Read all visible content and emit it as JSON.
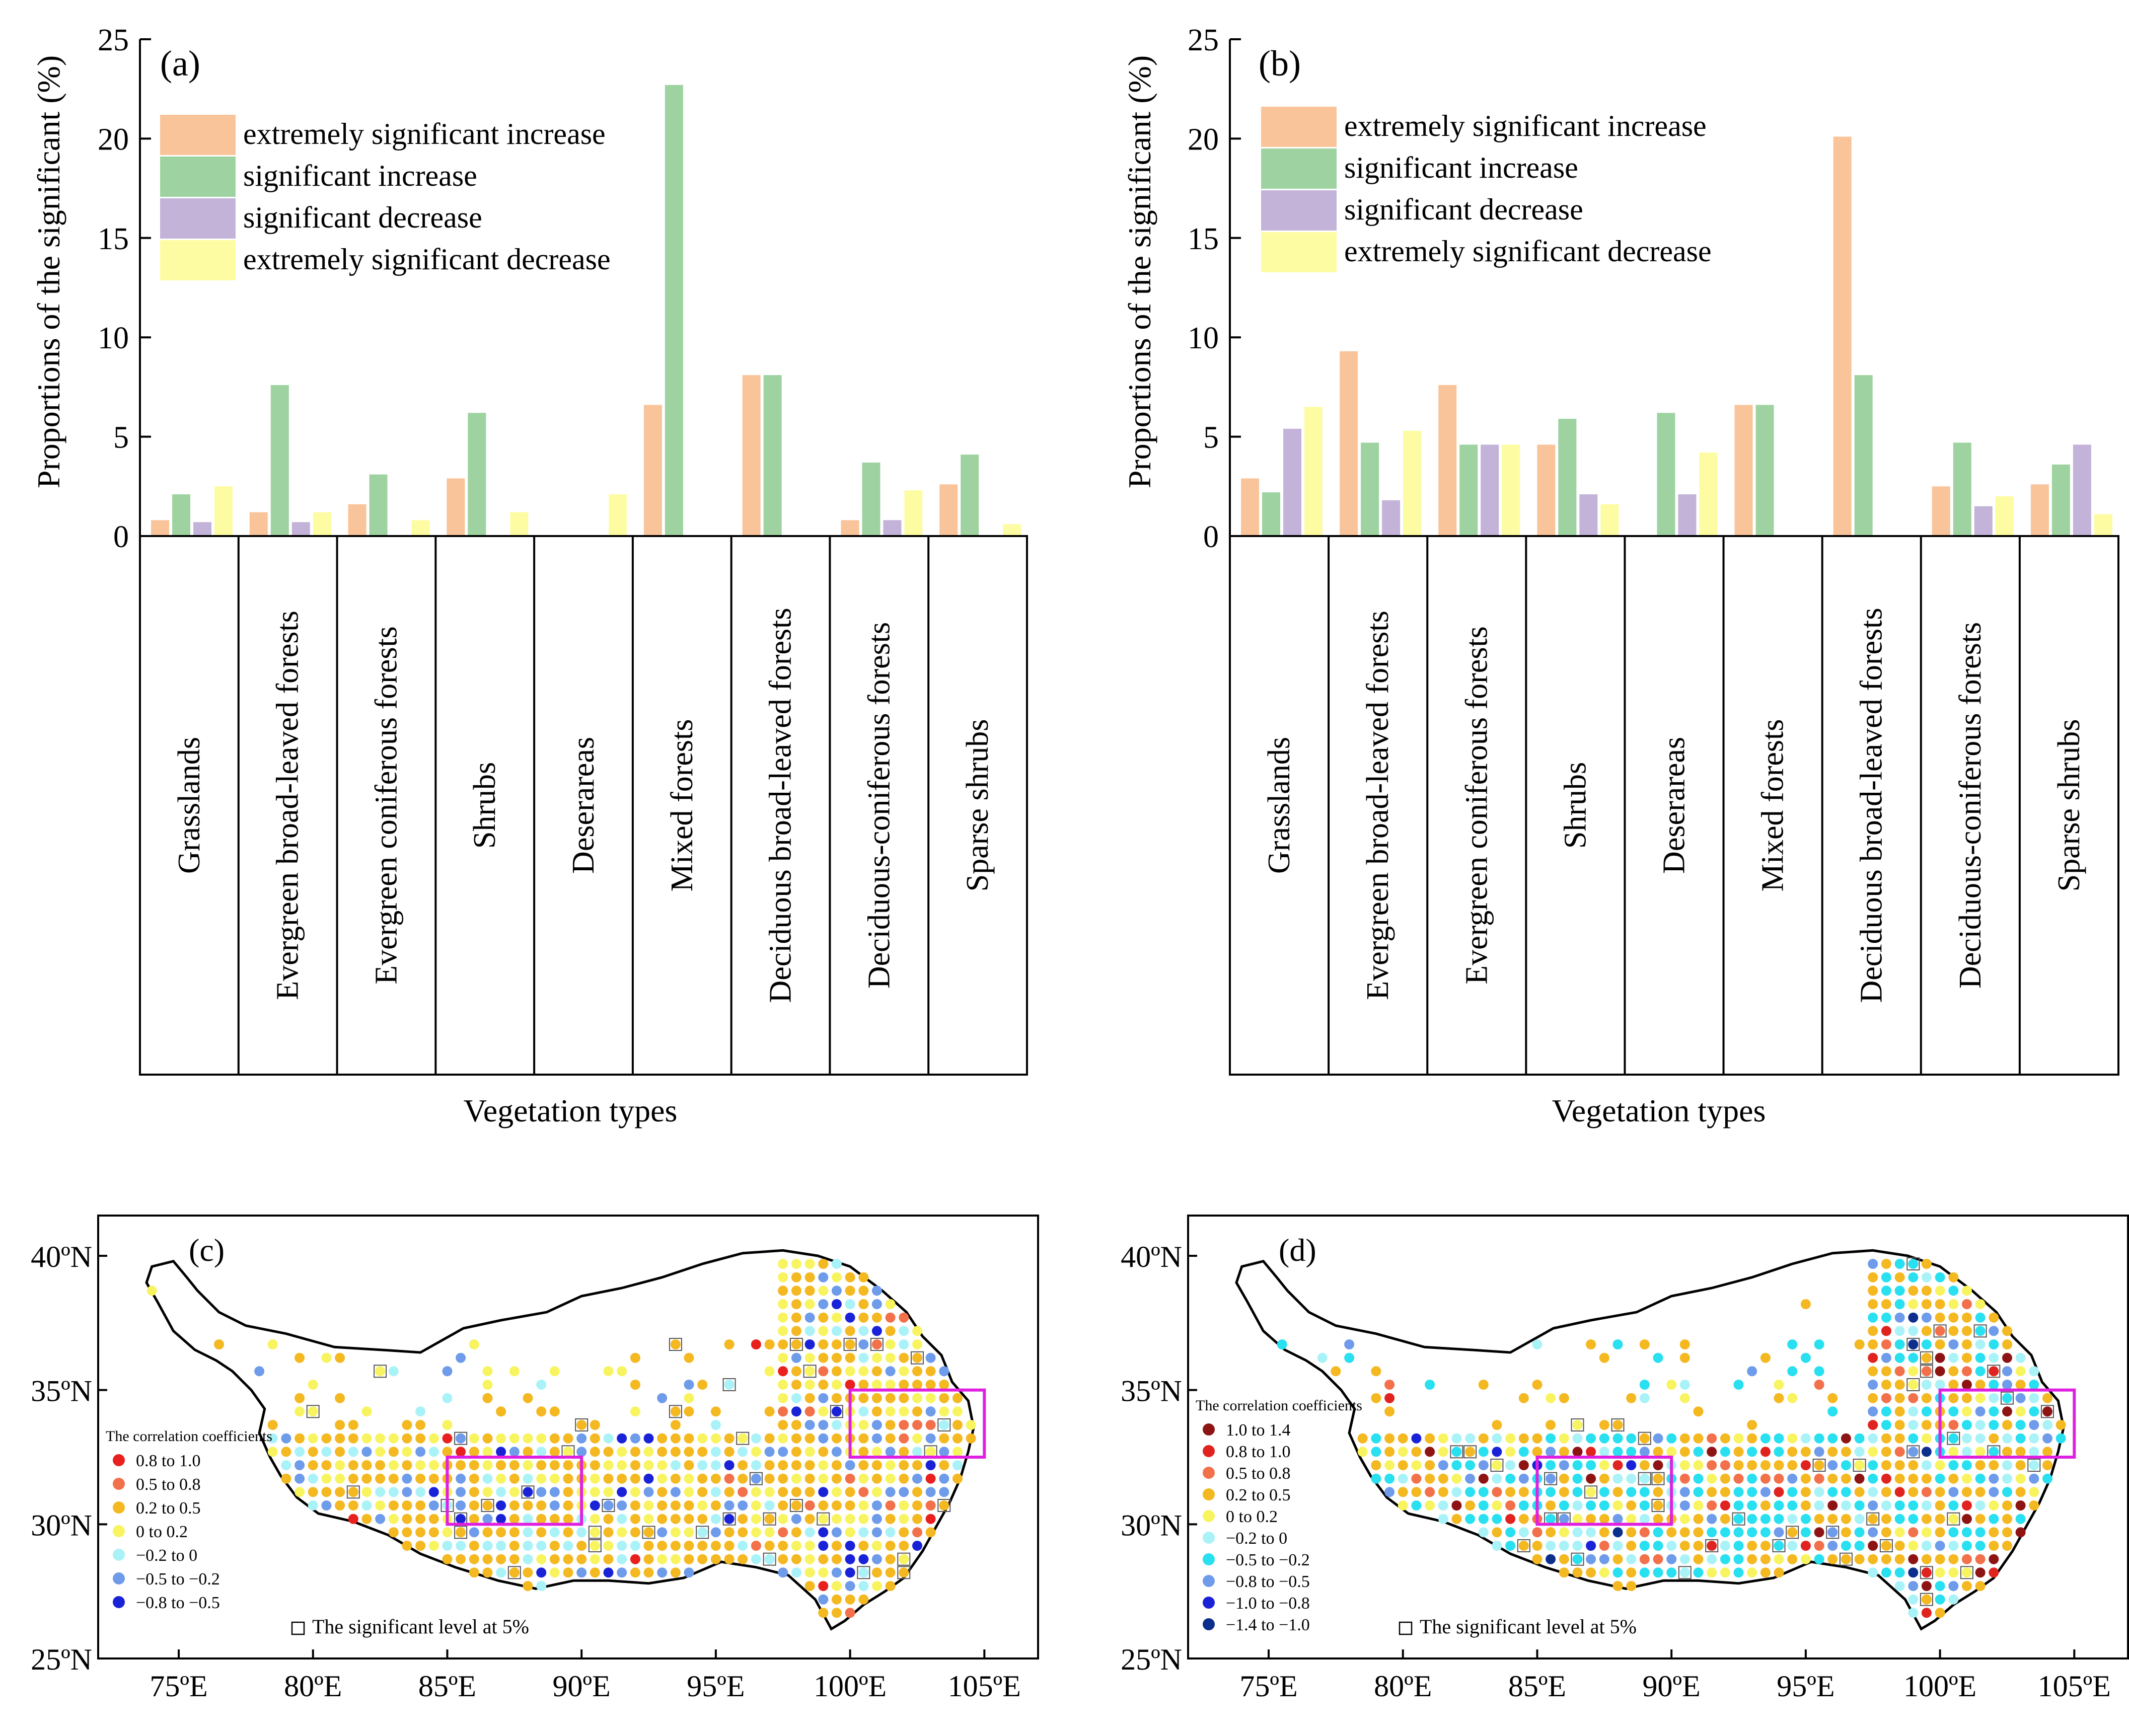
{
  "chart_data": [
    {
      "id": "a",
      "type": "bar",
      "panel_label": "(a)",
      "ylabel": "Proportions of the significant (%)",
      "xlabel": "Vegetation types",
      "ylim": [
        0,
        25
      ],
      "yticks": [
        "0",
        "5",
        "10",
        "15",
        "20",
        "25"
      ],
      "categories": [
        "Grasslands",
        "Evergreen broad-leaved forests",
        "Evergreen coniferous forests",
        "Shrubs",
        "Deserareas",
        "Mixed forests",
        "Deciduous broad-leaved forests",
        "Deciduous-coniferous forests",
        "Sparse shrubs"
      ],
      "legend_position": "top-left",
      "series": [
        {
          "name": "extremely significant increase",
          "color": "#F9C49A",
          "values": [
            0.8,
            1.2,
            1.6,
            2.9,
            0.0,
            6.6,
            8.1,
            0.8,
            2.6
          ]
        },
        {
          "name": "significant increase",
          "color": "#9ED3A1",
          "values": [
            2.1,
            7.6,
            3.1,
            6.2,
            0.0,
            22.7,
            8.1,
            3.7,
            4.1
          ]
        },
        {
          "name": "significant decrease",
          "color": "#C3B3D9",
          "values": [
            0.7,
            0.7,
            0.0,
            0.0,
            0.0,
            0.0,
            0.0,
            0.8,
            0.0
          ]
        },
        {
          "name": "extremely significant decrease",
          "color": "#FDFCA3",
          "values": [
            2.5,
            1.2,
            0.8,
            1.2,
            2.1,
            0.0,
            0.0,
            2.3,
            0.6
          ]
        }
      ]
    },
    {
      "id": "b",
      "type": "bar",
      "panel_label": "(b)",
      "ylabel": "Proportions of the significant (%)",
      "xlabel": "Vegetation types",
      "ylim": [
        0,
        25
      ],
      "yticks": [
        "0",
        "5",
        "10",
        "15",
        "20",
        "25"
      ],
      "categories": [
        "Grasslands",
        "Evergreen broad-leaved forests",
        "Evergreen coniferous forests",
        "Shrubs",
        "Deserareas",
        "Mixed forests",
        "Deciduous broad-leaved forests",
        "Deciduous-coniferous forests",
        "Sparse shrubs"
      ],
      "legend_position": "top-left",
      "series": [
        {
          "name": "extremely significant increase",
          "color": "#F9C49A",
          "values": [
            2.9,
            9.3,
            7.6,
            4.6,
            0.0,
            6.6,
            20.1,
            2.5,
            2.6
          ]
        },
        {
          "name": "significant increase",
          "color": "#9ED3A1",
          "values": [
            2.2,
            4.7,
            4.6,
            5.9,
            6.2,
            6.6,
            8.1,
            4.7,
            3.6
          ]
        },
        {
          "name": "significant decrease",
          "color": "#C3B3D9",
          "values": [
            5.4,
            1.8,
            4.6,
            2.1,
            2.1,
            0.0,
            0.0,
            1.5,
            4.6
          ]
        },
        {
          "name": "extremely significant decrease",
          "color": "#FDFCA3",
          "values": [
            6.5,
            5.3,
            4.6,
            1.6,
            4.2,
            0.0,
            0.0,
            2.0,
            1.1
          ]
        }
      ]
    },
    {
      "id": "c",
      "type": "map",
      "panel_label": "(c)",
      "lon_ticks": [
        "75ºE",
        "80ºE",
        "85ºE",
        "90ºE",
        "95ºE",
        "100ºE",
        "105ºE"
      ],
      "lat_ticks": [
        "25ºN",
        "30ºN",
        "35ºN",
        "40ºN"
      ],
      "lon_range": [
        72,
        107
      ],
      "lat_range": [
        25,
        41.5
      ],
      "legend_title": "The correlation coefficients",
      "legend_position": "bottom-left",
      "classes": [
        {
          "label": "0.8  to  1.0",
          "color": "#E8201E"
        },
        {
          "label": "0.5  to  0.8",
          "color": "#F2704A"
        },
        {
          "label": "0.2  to  0.5",
          "color": "#F4B820"
        },
        {
          "label": "0  to  0.2",
          "color": "#F8F460"
        },
        {
          "label": "−0.2  to  0",
          "color": "#A9F3F8"
        },
        {
          "label": "−0.5  to  −0.2",
          "color": "#6E9BEA"
        },
        {
          "label": "−0.8  to  −0.5",
          "color": "#1A22D8"
        }
      ],
      "significance_note": "The significant level at 5%",
      "highlight_boxes": [
        {
          "lon": [
            85,
            90
          ],
          "lat": [
            30,
            32.5
          ]
        },
        {
          "lon": [
            100,
            105
          ],
          "lat": [
            32.5,
            35
          ]
        }
      ]
    },
    {
      "id": "d",
      "type": "map",
      "panel_label": "(d)",
      "lon_ticks": [
        "75ºE",
        "80ºE",
        "85ºE",
        "90ºE",
        "95ºE",
        "100ºE",
        "105ºE"
      ],
      "lat_ticks": [
        "25ºN",
        "30ºN",
        "35ºN",
        "40ºN"
      ],
      "lon_range": [
        72,
        107
      ],
      "lat_range": [
        25,
        41.5
      ],
      "legend_title": "The correlation coefficients",
      "legend_position": "bottom-left",
      "classes": [
        {
          "label": "1.0  to  1.4",
          "color": "#8E1414"
        },
        {
          "label": "0.8  to  1.0",
          "color": "#E0231F"
        },
        {
          "label": "0.5  to  0.8",
          "color": "#F2704A"
        },
        {
          "label": "0.2  to  0.5",
          "color": "#F4B820"
        },
        {
          "label": "0  to  0.2",
          "color": "#F8F460"
        },
        {
          "label": "−0.2  to  0",
          "color": "#A9F3F8"
        },
        {
          "label": "−0.5  to  −0.2",
          "color": "#28E0F0"
        },
        {
          "label": "−0.8  to  −0.5",
          "color": "#6E9BEA"
        },
        {
          "label": "−1.0  to  −0.8",
          "color": "#1A22D8"
        },
        {
          "label": "−1.4  to  −1.0",
          "color": "#0C2E8C"
        }
      ],
      "significance_note": "The significant level at 5%",
      "highlight_boxes": [
        {
          "lon": [
            85,
            90
          ],
          "lat": [
            30,
            32.5
          ]
        },
        {
          "lon": [
            100,
            105
          ],
          "lat": [
            32.5,
            35
          ]
        }
      ]
    }
  ]
}
